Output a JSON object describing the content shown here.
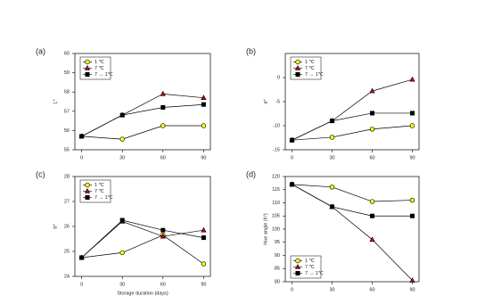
{
  "chart_data": [
    {
      "type": "line",
      "panel_label": "(a)",
      "ylabel": "L*",
      "x": [
        0,
        30,
        60,
        90
      ],
      "xlim": [
        -5,
        95
      ],
      "xticks": [
        0,
        30,
        60,
        90
      ],
      "ylim": [
        55,
        60
      ],
      "yticks": [
        55,
        56,
        57,
        58,
        59,
        60
      ],
      "legend": "upper left",
      "series": [
        {
          "name": "1 ℃",
          "color": "#ffff00",
          "marker": "circle",
          "values": [
            55.7,
            55.55,
            56.25,
            56.25
          ]
        },
        {
          "name": "7 ℃",
          "color": "#cc0000",
          "marker": "triangle",
          "values": [
            55.7,
            56.8,
            57.9,
            57.7
          ]
        },
        {
          "name": "7 → 1℃",
          "color": "#000000",
          "marker": "square",
          "values": [
            55.7,
            56.8,
            57.2,
            57.35
          ]
        }
      ]
    },
    {
      "type": "line",
      "panel_label": "(b)",
      "ylabel": "a*",
      "x": [
        0,
        30,
        60,
        90
      ],
      "xlim": [
        -5,
        95
      ],
      "xticks": [
        0,
        30,
        60,
        90
      ],
      "ylim": [
        -15,
        5
      ],
      "yticks": [
        -15,
        -10,
        -5,
        0
      ],
      "legend": "upper left",
      "series": [
        {
          "name": "1 ℃",
          "color": "#ffff00",
          "marker": "circle",
          "values": [
            -13,
            -12.4,
            -10.7,
            -10
          ]
        },
        {
          "name": "7 ℃",
          "color": "#cc0000",
          "marker": "triangle",
          "values": [
            -13,
            -9,
            -2.8,
            -0.4
          ]
        },
        {
          "name": "7 → 1℃",
          "color": "#000000",
          "marker": "square",
          "values": [
            -13,
            -9,
            -7.4,
            -7.4
          ]
        }
      ]
    },
    {
      "type": "line",
      "panel_label": "(c)",
      "ylabel": "b*",
      "xlabel": "Storage duration (days)",
      "x": [
        0,
        30,
        60,
        90
      ],
      "xlim": [
        -5,
        95
      ],
      "xticks": [
        0,
        30,
        60,
        90
      ],
      "ylim": [
        24,
        28
      ],
      "yticks": [
        24,
        25,
        26,
        27,
        28
      ],
      "legend": "upper left",
      "series": [
        {
          "name": "1 ℃",
          "color": "#ffff00",
          "marker": "circle",
          "values": [
            24.75,
            24.95,
            25.65,
            24.5
          ]
        },
        {
          "name": "7 ℃",
          "color": "#cc0000",
          "marker": "triangle",
          "values": [
            24.75,
            26.2,
            25.6,
            25.85
          ]
        },
        {
          "name": "7 → 1℃",
          "color": "#000000",
          "marker": "square",
          "values": [
            24.75,
            26.25,
            25.85,
            25.55
          ]
        }
      ]
    },
    {
      "type": "line",
      "panel_label": "(d)",
      "ylabel": "Hue angle (h°)",
      "x": [
        0,
        30,
        60,
        90
      ],
      "xlim": [
        -5,
        95
      ],
      "xticks": [
        0,
        30,
        60,
        90
      ],
      "ylim": [
        80,
        120
      ],
      "yticks": [
        80,
        85,
        90,
        95,
        100,
        105,
        110,
        115,
        120
      ],
      "legend": "lower left",
      "series": [
        {
          "name": "1 ℃",
          "color": "#ffff00",
          "marker": "circle",
          "values": [
            117,
            116,
            110.5,
            111
          ]
        },
        {
          "name": "7 ℃",
          "color": "#cc0000",
          "marker": "triangle",
          "values": [
            117,
            108.5,
            96,
            80.5
          ]
        },
        {
          "name": "7 → 1℃",
          "color": "#000000",
          "marker": "square",
          "values": [
            117,
            108.5,
            105,
            105
          ]
        }
      ]
    }
  ]
}
